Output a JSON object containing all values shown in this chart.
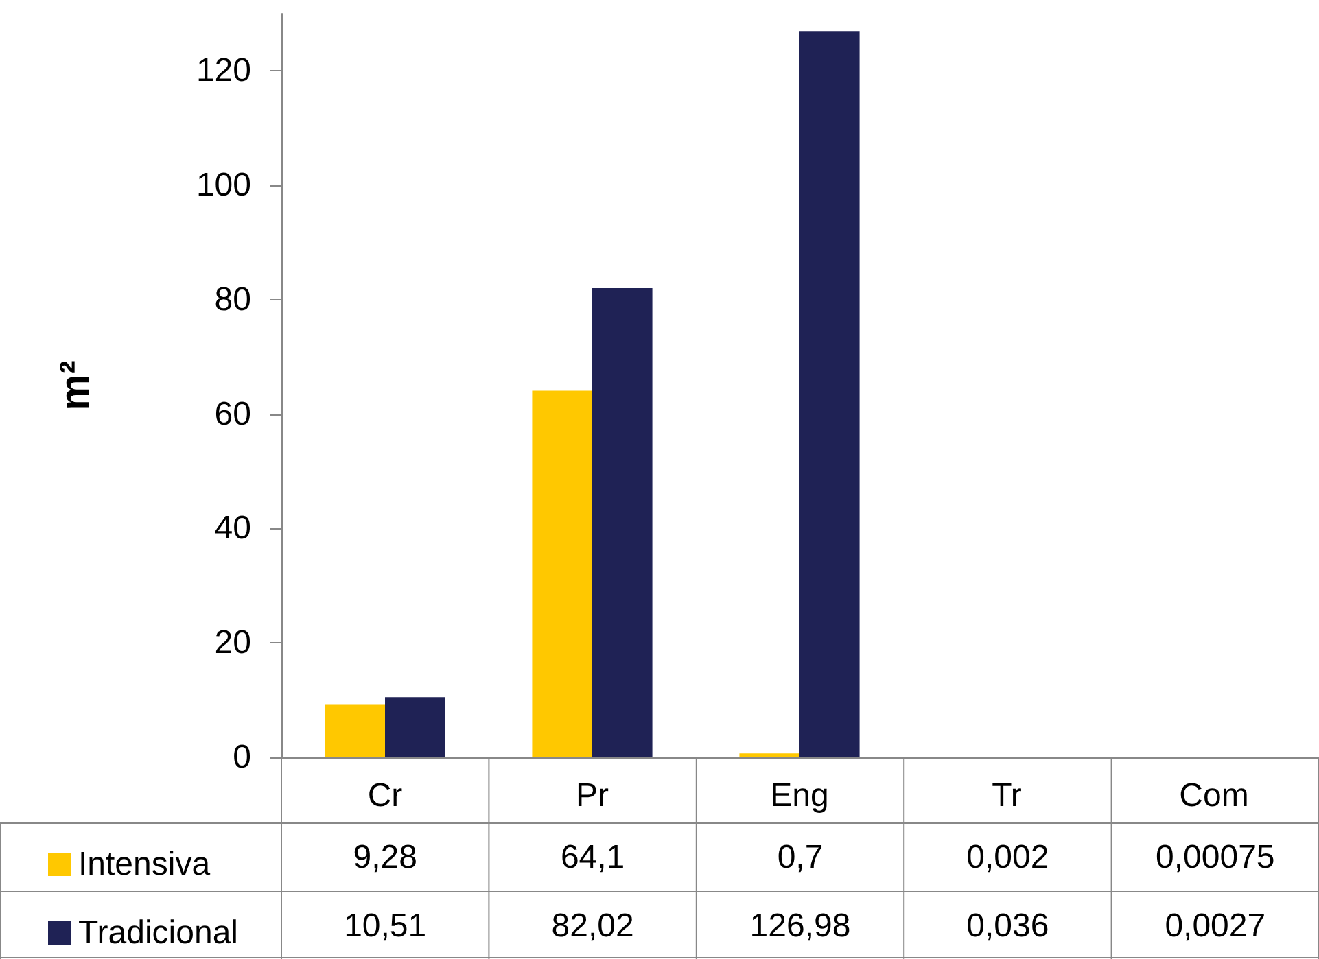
{
  "chart_data": {
    "type": "bar",
    "ylabel": "m²",
    "categories": [
      "Cr",
      "Pr",
      "Eng",
      "Tr",
      "Com"
    ],
    "series": [
      {
        "name": "Intensiva",
        "color": "#ffc800",
        "values": [
          9.28,
          64.1,
          0.7,
          0.002,
          0.00075
        ],
        "value_labels": [
          "9,28",
          "64,1",
          "0,7",
          "0,002",
          "0,00075"
        ]
      },
      {
        "name": "Tradicional",
        "color": "#1f2255",
        "values": [
          10.51,
          82.02,
          126.98,
          0.036,
          0.0027
        ],
        "value_labels": [
          "10,51",
          "82,02",
          "126,98",
          "0,036",
          "0,0027"
        ]
      }
    ],
    "ylim": [
      0,
      130
    ],
    "yticks": [
      0,
      20,
      40,
      60,
      80,
      100,
      120
    ],
    "grid": false,
    "legend": "bottom left"
  }
}
